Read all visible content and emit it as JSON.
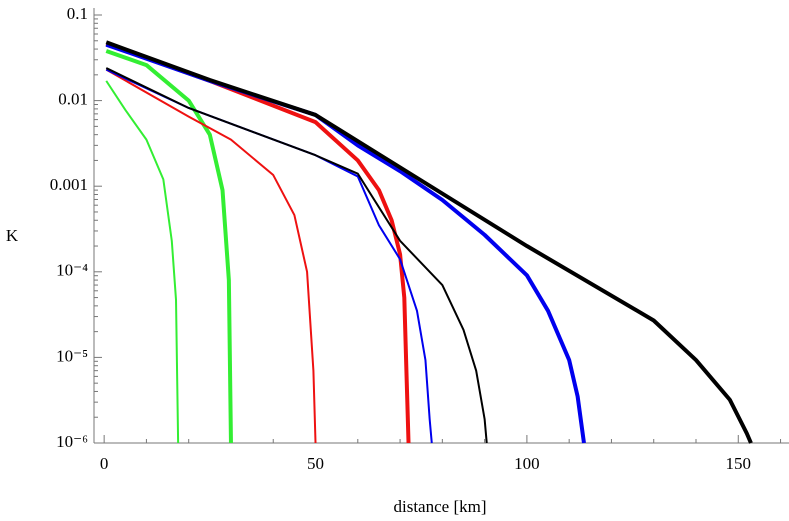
{
  "chart_data": {
    "type": "line",
    "y_label": "K",
    "x_label": "distance [km]",
    "xlim": [
      -2.4,
      162
    ],
    "xticks": [
      0,
      50,
      100,
      150
    ],
    "ylim": [
      1e-06,
      0.1
    ],
    "log_y": true,
    "yticks": [
      0.1,
      0.01,
      0.001,
      {
        "value": 0.0001,
        "label": "10⁻⁴"
      },
      {
        "value": 1e-05,
        "label": "10⁻⁵"
      },
      {
        "value": 1e-06,
        "label": "10⁻⁶"
      }
    ],
    "series": [
      {
        "color": "#33ee33",
        "width": 2,
        "x": [
          0.5,
          5,
          10,
          14,
          16,
          17,
          17.5
        ],
        "values": [
          0.017,
          0.0078,
          0.0035,
          0.0012,
          0.00023,
          4.7e-05,
          1e-06
        ]
      },
      {
        "color": "#33ee33",
        "width": 4,
        "x": [
          0.5,
          10,
          20,
          25,
          28,
          29.5,
          30
        ],
        "values": [
          0.038,
          0.026,
          0.01,
          0.004,
          0.0009,
          8e-05,
          1e-06
        ]
      },
      {
        "color": "#ee1111",
        "width": 2,
        "x": [
          0.5,
          20,
          30,
          40,
          45,
          48,
          49.5,
          50
        ],
        "values": [
          0.023,
          0.0065,
          0.0035,
          0.00135,
          0.00046,
          0.0001,
          7e-06,
          1e-06
        ]
      },
      {
        "color": "#ee1111",
        "width": 4,
        "x": [
          0.5,
          25,
          50,
          60,
          65,
          68,
          70,
          71,
          71.5,
          72
        ],
        "values": [
          0.046,
          0.017,
          0.0056,
          0.002,
          0.0009,
          0.0004,
          0.00016,
          5e-05,
          7e-06,
          1e-06
        ]
      },
      {
        "color": "#0000ee",
        "width": 2,
        "x": [
          0.5,
          20,
          50,
          60,
          65,
          70,
          74,
          76,
          77,
          77.5
        ],
        "values": [
          0.023,
          0.0082,
          0.0023,
          0.0013,
          0.00035,
          0.00014,
          3.5e-05,
          9.3e-06,
          1.9e-06,
          1e-06
        ]
      },
      {
        "color": "#0000ee",
        "width": 4,
        "x": [
          0.5,
          25,
          50,
          60,
          70,
          80,
          90,
          100,
          105,
          110,
          112,
          113.5
        ],
        "values": [
          0.045,
          0.017,
          0.0068,
          0.003,
          0.0015,
          0.00069,
          0.00027,
          9.1e-05,
          3.5e-05,
          9.3e-06,
          3.5e-06,
          1e-06
        ]
      },
      {
        "color": "#000000",
        "width": 2,
        "x": [
          0.5,
          20,
          50,
          60,
          70,
          80,
          85,
          88,
          90,
          90.5
        ],
        "values": [
          0.024,
          0.0082,
          0.0023,
          0.0014,
          0.00023,
          7e-05,
          2.1e-05,
          7e-06,
          1.9e-06,
          1e-06
        ]
      },
      {
        "color": "#000000",
        "width": 4,
        "x": [
          0.5,
          25,
          50,
          100,
          130,
          140,
          148,
          152,
          153
        ],
        "values": [
          0.048,
          0.0174,
          0.0068,
          0.0002,
          2.7e-05,
          9.3e-06,
          3.2e-06,
          1.3e-06,
          1e-06
        ]
      }
    ]
  }
}
